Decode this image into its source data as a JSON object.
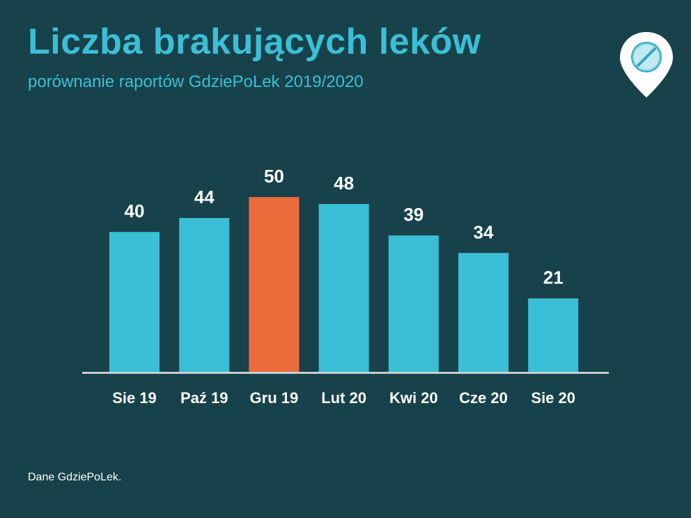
{
  "header": {
    "title": "Liczba brakujących leków",
    "subtitle": "porównanie raportów GdziePoLek 2019/2020"
  },
  "footer": {
    "source": "Dane GdziePoLek."
  },
  "logo": {
    "icon": "pill-location-pin-icon"
  },
  "colors": {
    "background": "#17424b",
    "title": "#3bbfd6",
    "subtitle": "#3bbfd6",
    "bar": "#3bbfd6",
    "highlight": "#ec6b3b",
    "axis": "#c9cdd0",
    "labels": "#ffffff"
  },
  "chart_data": {
    "type": "bar",
    "categories": [
      "Sie 19",
      "Paź 19",
      "Gru 19",
      "Lut 20",
      "Kwi 20",
      "Cze 20",
      "Sie 20"
    ],
    "values": [
      40,
      44,
      50,
      48,
      39,
      34,
      21
    ],
    "highlight_index": 2,
    "ylim": [
      0,
      50
    ],
    "grid": false,
    "legend": "none"
  }
}
